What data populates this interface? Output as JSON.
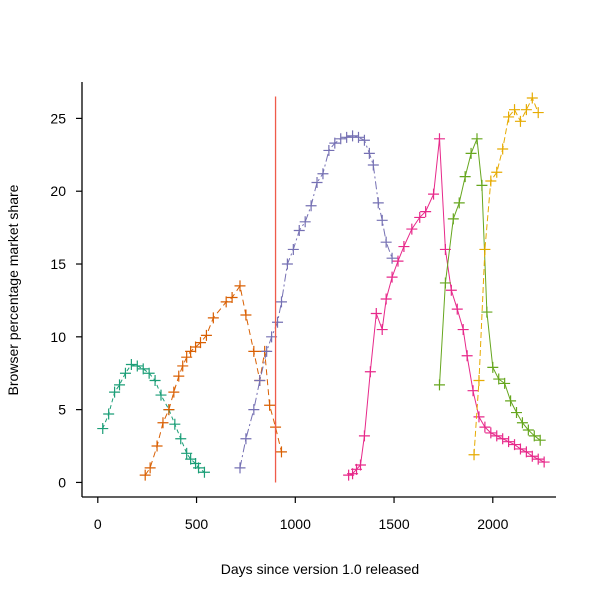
{
  "chart_data": {
    "type": "scatter",
    "title": "",
    "xlabel": "Days since version 1.0 released",
    "ylabel": "Browser percentage market share",
    "xlim": [
      -80,
      2320
    ],
    "ylim": [
      -1,
      27.5
    ],
    "xticks": [
      0,
      500,
      1000,
      1500,
      2000
    ],
    "yticks": [
      0,
      5,
      10,
      15,
      20,
      25
    ],
    "xtick_labels": [
      "0",
      "500",
      "1000",
      "1500",
      "2000"
    ],
    "ytick_labels": [
      "0",
      "5",
      "10",
      "15",
      "20",
      "25"
    ],
    "grid": false,
    "legend": "none",
    "marker": "plus",
    "vline": {
      "x": 900,
      "y0": 0,
      "y1": 26.5,
      "color": "#ef5b4a"
    },
    "series": [
      {
        "color": "#1b9e77",
        "dash": "4,3",
        "points": [
          [
            25,
            3.7
          ],
          [
            55,
            4.7
          ],
          [
            85,
            6.2
          ],
          [
            110,
            6.7
          ],
          [
            140,
            7.5
          ],
          [
            170,
            8.1
          ],
          [
            200,
            8.0
          ],
          [
            230,
            7.8
          ],
          [
            260,
            7.5
          ],
          [
            290,
            7.0
          ],
          [
            320,
            6.0
          ],
          [
            360,
            5.0
          ],
          [
            390,
            4.0
          ],
          [
            420,
            3.0
          ],
          [
            450,
            2.0
          ],
          [
            470,
            1.6
          ],
          [
            495,
            1.3
          ],
          [
            510,
            1.0
          ],
          [
            540,
            0.7
          ]
        ]
      },
      {
        "color": "#d95f02",
        "dash": "6,4",
        "points": [
          [
            240,
            0.5
          ],
          [
            265,
            1.0
          ],
          [
            300,
            2.5
          ],
          [
            330,
            4.1
          ],
          [
            360,
            5.0
          ],
          [
            385,
            6.2
          ],
          [
            410,
            7.3
          ],
          [
            430,
            8.0
          ],
          [
            450,
            8.6
          ],
          [
            470,
            9.0
          ],
          [
            495,
            9.3
          ],
          [
            520,
            9.6
          ],
          [
            550,
            10.1
          ],
          [
            585,
            11.3
          ],
          [
            650,
            12.4
          ],
          [
            680,
            12.7
          ],
          [
            720,
            13.5
          ],
          [
            750,
            11.5
          ],
          [
            790,
            9.0
          ],
          [
            820,
            7.0
          ],
          [
            845,
            9.0
          ],
          [
            870,
            5.3
          ],
          [
            900,
            3.8
          ],
          [
            930,
            2.1
          ]
        ]
      },
      {
        "color": "#7570b3",
        "dash": "8,3,2,3",
        "points": [
          [
            720,
            1.0
          ],
          [
            750,
            3.0
          ],
          [
            790,
            5.0
          ],
          [
            820,
            7.0
          ],
          [
            855,
            9.0
          ],
          [
            880,
            10.0
          ],
          [
            910,
            11.0
          ],
          [
            930,
            12.4
          ],
          [
            960,
            15.0
          ],
          [
            990,
            16.0
          ],
          [
            1020,
            17.3
          ],
          [
            1050,
            17.9
          ],
          [
            1080,
            19.0
          ],
          [
            1110,
            20.6
          ],
          [
            1140,
            21.2
          ],
          [
            1170,
            22.8
          ],
          [
            1200,
            23.3
          ],
          [
            1230,
            23.6
          ],
          [
            1260,
            23.7
          ],
          [
            1290,
            23.8
          ],
          [
            1320,
            23.7
          ],
          [
            1350,
            23.5
          ],
          [
            1375,
            22.6
          ],
          [
            1395,
            21.8
          ],
          [
            1420,
            19.2
          ],
          [
            1440,
            18.0
          ],
          [
            1460,
            16.5
          ],
          [
            1490,
            15.4
          ]
        ]
      },
      {
        "color": "#e7298a",
        "dash": "",
        "points": [
          [
            1270,
            0.5
          ],
          [
            1290,
            0.6
          ],
          [
            1310,
            0.9
          ],
          [
            1330,
            1.2
          ],
          [
            1350,
            3.2
          ],
          [
            1380,
            7.6
          ],
          [
            1410,
            11.6
          ],
          [
            1440,
            10.5
          ],
          [
            1460,
            12.6
          ],
          [
            1490,
            14.1
          ],
          [
            1520,
            15.2
          ],
          [
            1550,
            16.2
          ],
          [
            1590,
            17.4
          ],
          [
            1630,
            18.2
          ],
          [
            1660,
            18.6
          ],
          [
            1700,
            19.8
          ],
          [
            1730,
            23.6
          ],
          [
            1760,
            16.0
          ],
          [
            1790,
            13.2
          ],
          [
            1820,
            11.9
          ],
          [
            1850,
            10.5
          ],
          [
            1870,
            8.7
          ],
          [
            1900,
            6.3
          ],
          [
            1930,
            4.5
          ],
          [
            1960,
            3.8
          ],
          [
            1990,
            3.4
          ],
          [
            2020,
            3.2
          ],
          [
            2050,
            3.0
          ],
          [
            2080,
            2.8
          ],
          [
            2110,
            2.6
          ],
          [
            2140,
            2.3
          ],
          [
            2170,
            2.1
          ],
          [
            2200,
            1.8
          ],
          [
            2230,
            1.6
          ],
          [
            2260,
            1.4
          ]
        ]
      },
      {
        "color": "#66a61e",
        "dash": "",
        "points": [
          [
            1730,
            6.7
          ],
          [
            1760,
            13.7
          ],
          [
            1800,
            18.1
          ],
          [
            1830,
            19.2
          ],
          [
            1860,
            21.0
          ],
          [
            1890,
            22.6
          ],
          [
            1920,
            23.6
          ],
          [
            1945,
            20.4
          ],
          [
            1970,
            11.7
          ],
          [
            2000,
            7.9
          ],
          [
            2030,
            7.1
          ],
          [
            2060,
            6.8
          ],
          [
            2090,
            5.6
          ],
          [
            2120,
            4.8
          ],
          [
            2150,
            4.1
          ],
          [
            2180,
            3.6
          ],
          [
            2210,
            3.2
          ],
          [
            2240,
            2.9
          ]
        ]
      },
      {
        "color": "#e6ab02",
        "dash": "6,3",
        "points": [
          [
            1905,
            1.9
          ],
          [
            1930,
            7.0
          ],
          [
            1960,
            16.0
          ],
          [
            1990,
            20.7
          ],
          [
            2020,
            21.3
          ],
          [
            2050,
            22.9
          ],
          [
            2080,
            25.1
          ],
          [
            2110,
            25.6
          ],
          [
            2140,
            24.8
          ],
          [
            2170,
            25.6
          ],
          [
            2200,
            26.4
          ],
          [
            2230,
            25.4
          ]
        ]
      }
    ]
  }
}
